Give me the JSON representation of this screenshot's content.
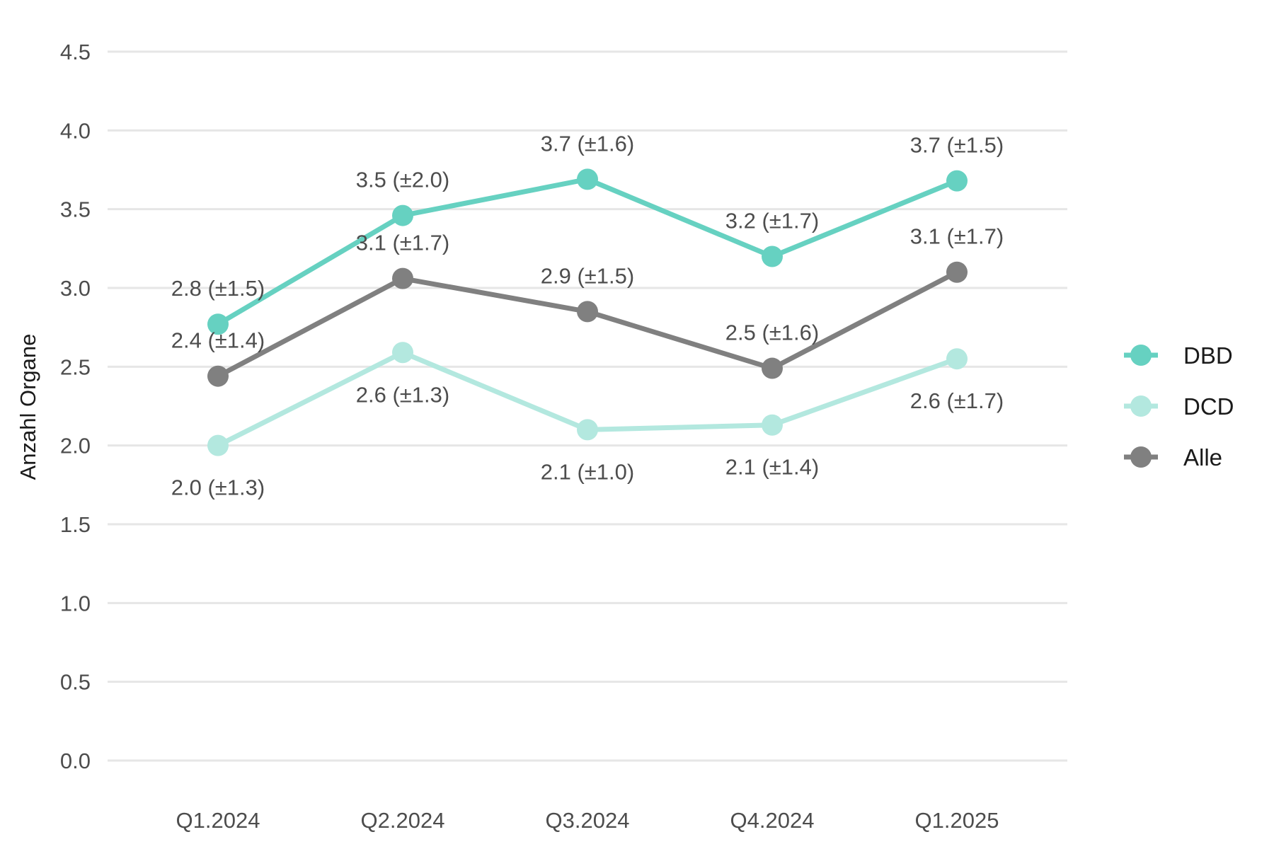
{
  "chart_data": {
    "type": "line",
    "title": "",
    "xlabel": "",
    "ylabel": "Anzahl Organe",
    "ylim": [
      0,
      4.5
    ],
    "yticks": [
      "0.0",
      "0.5",
      "1.0",
      "1.5",
      "2.0",
      "2.5",
      "3.0",
      "3.5",
      "4.0",
      "4.5"
    ],
    "categories": [
      "Q1.2024",
      "Q2.2024",
      "Q3.2024",
      "Q4.2024",
      "Q1.2025"
    ],
    "grid": "horizontal",
    "legend_position": "right",
    "series": [
      {
        "name": "DBD",
        "color": "#66d1c1",
        "values": [
          2.77,
          3.46,
          3.69,
          3.2,
          3.68
        ],
        "labels": [
          "2.8 (±1.5)",
          "3.5 (±2.0)",
          "3.7 (±1.6)",
          "3.2 (±1.7)",
          "3.7 (±1.5)"
        ],
        "label_position": "above"
      },
      {
        "name": "DCD",
        "color": "#b3e8df",
        "values": [
          2.0,
          2.59,
          2.1,
          2.13,
          2.55
        ],
        "labels": [
          "2.0 (±1.3)",
          "2.6 (±1.3)",
          "2.1 (±1.0)",
          "2.1 (±1.4)",
          "2.6 (±1.7)"
        ],
        "label_position": "below"
      },
      {
        "name": "Alle",
        "color": "#808080",
        "values": [
          2.44,
          3.06,
          2.85,
          2.49,
          3.1
        ],
        "labels": [
          "2.4 (±1.4)",
          "3.1 (±1.7)",
          "2.9 (±1.5)",
          "2.5 (±1.6)",
          "3.1 (±1.7)"
        ],
        "label_position": "above"
      }
    ]
  }
}
